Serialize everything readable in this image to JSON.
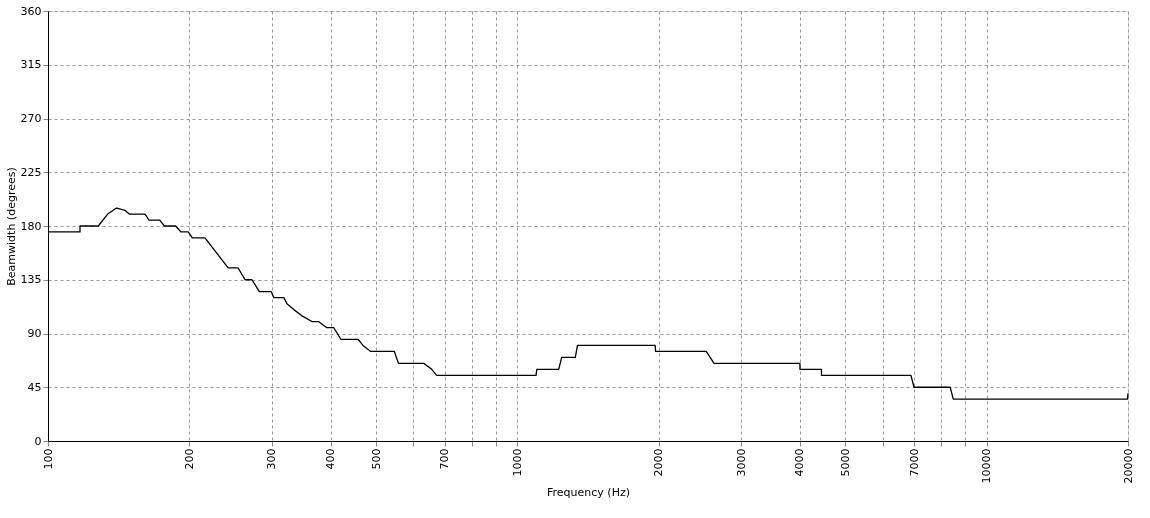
{
  "chart_data": {
    "type": "line",
    "xlabel": "Frequency (Hz)",
    "ylabel": "Beamwidth (degrees)",
    "log": "x",
    "grid": true,
    "line_style": "solid",
    "marker": "none",
    "xlim": [
      100,
      20000
    ],
    "ylim": [
      0,
      360
    ],
    "xticks": [
      100,
      200,
      300,
      400,
      500,
      {
        "value": 600,
        "label": null
      },
      700,
      {
        "value": 800,
        "label": null
      },
      {
        "value": 900,
        "label": null
      },
      1000,
      2000,
      3000,
      4000,
      5000,
      {
        "value": 6000,
        "label": null
      },
      7000,
      {
        "value": 8000,
        "label": null
      },
      {
        "value": 9000,
        "label": null
      },
      10000,
      20000
    ],
    "yticks": [
      0,
      45,
      90,
      135,
      180,
      225,
      270,
      315,
      360
    ],
    "series": [
      {
        "color": "#000000",
        "x": [
          100,
          117,
          117,
          128,
          134,
          140,
          146,
          149,
          161,
          164,
          173,
          177,
          187,
          192,
          199,
          203,
          216,
          242,
          254,
          263,
          272,
          282,
          299,
          303,
          318,
          323,
          334,
          347,
          365,
          377,
          392,
          406,
          421,
          458,
          469,
          487,
          547,
          558,
          632,
          657,
          673,
          1096,
          1100,
          1225,
          1243,
          1329,
          1343,
          1966,
          1970,
          2526,
          2625,
          4000,
          4000,
          4446,
          4446,
          6897,
          7000,
          8360,
          8487,
          19940,
          20000
        ],
        "values": [
          175,
          175,
          180,
          180,
          190,
          195,
          193,
          190,
          190,
          185,
          185,
          180,
          180,
          175,
          175,
          170,
          170,
          145,
          145,
          135,
          135,
          125,
          125,
          120,
          120,
          115,
          110,
          105,
          100,
          100,
          95,
          95,
          85,
          85,
          80,
          75,
          75,
          65,
          65,
          60,
          55,
          55,
          60,
          60,
          70,
          70,
          80,
          80,
          75,
          75,
          65,
          65,
          60,
          60,
          55,
          55,
          45,
          45,
          35,
          35,
          40
        ]
      }
    ]
  }
}
